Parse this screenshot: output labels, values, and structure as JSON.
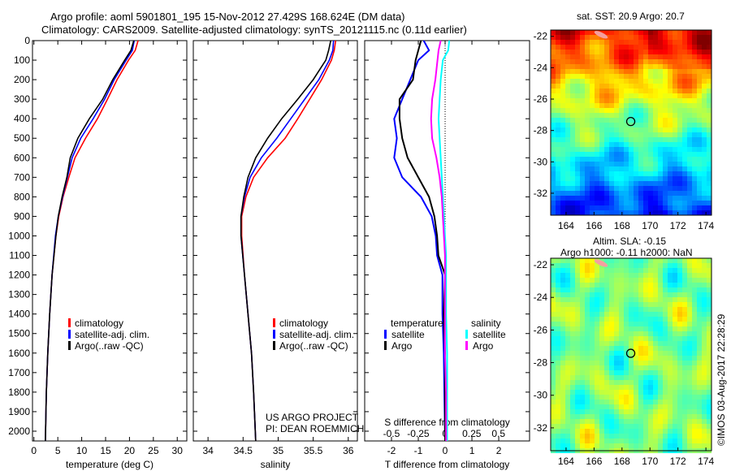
{
  "title": {
    "line1": "Argo profile: aoml 5901801_195 15-Nov-2012 27.429S 168.624E (DM data)",
    "line2": "Climatology: CARS2009. Satellite-adjusted climatology: synTS_20121115.nc (0.11d earlier)"
  },
  "credit": "US ARGO PROJECT",
  "pi": "PI: DEAN ROEMMICH",
  "footer": "©IMOS 03-Aug-2017 22:28:29",
  "colors": {
    "climatology": "#ff0000",
    "satellite": "#0000ff",
    "argo": "#000000",
    "sal_sat": "#00ffff",
    "sal_argo": "#ff00ff"
  },
  "chart_data": [
    {
      "type": "line",
      "xlabel": "temperature (deg C)",
      "ylabel": "depth",
      "xlim": [
        -0.3,
        32
      ],
      "ylim": [
        2050,
        0
      ],
      "xticks": [
        0,
        5,
        10,
        15,
        20,
        25,
        30
      ],
      "yticks": [
        0,
        100,
        200,
        300,
        400,
        500,
        600,
        700,
        800,
        900,
        1000,
        1100,
        1200,
        1300,
        1400,
        1500,
        1600,
        1700,
        1800,
        1900,
        2000
      ],
      "legend": [
        "climatology",
        "satellite-adj. clim.",
        "Argo(..raw -QC)"
      ],
      "depth": [
        0,
        50,
        100,
        200,
        300,
        400,
        500,
        600,
        700,
        800,
        900,
        1000,
        1200,
        1400,
        1600,
        1800,
        2050
      ],
      "series": [
        {
          "name": "climatology",
          "color": "#ff0000",
          "values": [
            21.8,
            21.2,
            19.8,
            17.4,
            15.4,
            13.3,
            10.8,
            8.6,
            7.3,
            6.1,
            5.2,
            4.6,
            3.8,
            3.3,
            2.9,
            2.6,
            2.4
          ]
        },
        {
          "name": "satellite-adj. clim.",
          "color": "#0000ff",
          "values": [
            21.0,
            20.6,
            19.3,
            16.8,
            14.8,
            12.4,
            9.8,
            8.0,
            7.0,
            6.0,
            5.1,
            4.5,
            3.8,
            3.3,
            2.9,
            2.6,
            2.4
          ]
        },
        {
          "name": "Argo(..raw -QC)",
          "color": "#000000",
          "values": [
            20.9,
            20.3,
            19.0,
            16.5,
            14.4,
            11.6,
            9.2,
            7.6,
            6.9,
            5.9,
            5.1,
            4.6,
            3.8,
            3.3,
            2.9,
            2.6,
            2.4
          ]
        }
      ]
    },
    {
      "type": "line",
      "xlabel": "salinity",
      "xlim": [
        33.79,
        36.13
      ],
      "ylim": [
        2050,
        0
      ],
      "xticks": [
        34,
        34.5,
        35,
        35.5,
        36
      ],
      "legend": [
        "climatology",
        "satellite-adj. clim.",
        "Argo(..raw -QC)"
      ],
      "depth": [
        0,
        50,
        100,
        200,
        300,
        400,
        500,
        600,
        700,
        800,
        900,
        1000,
        1200,
        1400,
        1600,
        1800,
        2050
      ],
      "series": [
        {
          "name": "climatology",
          "color": "#ff0000",
          "values": [
            35.82,
            35.8,
            35.76,
            35.62,
            35.45,
            35.28,
            35.1,
            34.85,
            34.65,
            34.54,
            34.48,
            34.48,
            34.52,
            34.57,
            34.62,
            34.65,
            34.68
          ]
        },
        {
          "name": "satellite-adj. clim.",
          "color": "#0000ff",
          "values": [
            35.79,
            35.78,
            35.73,
            35.58,
            35.38,
            35.18,
            34.98,
            34.76,
            34.6,
            34.52,
            34.47,
            34.47,
            34.52,
            34.57,
            34.62,
            34.65,
            34.68
          ]
        },
        {
          "name": "Argo(..raw -QC)",
          "color": "#000000",
          "values": [
            35.75,
            35.72,
            35.68,
            35.5,
            35.28,
            35.05,
            34.85,
            34.68,
            34.57,
            34.51,
            34.47,
            34.47,
            34.52,
            34.57,
            34.62,
            34.65,
            34.68
          ]
        }
      ]
    },
    {
      "type": "line",
      "xlabel": "T difference from climatology",
      "x2label": "S difference from climatology",
      "xlim": [
        -3,
        3.15
      ],
      "x2lim": [
        -0.75,
        0.79
      ],
      "ylim": [
        2050,
        0
      ],
      "xticks": [
        -2,
        -1,
        0,
        1,
        2
      ],
      "x2ticks": [
        "-0.5",
        "-0.25",
        "0",
        "0.25",
        "0.5"
      ],
      "legend_t": {
        "title": "temperature",
        "items": [
          "satellite",
          "Argo"
        ]
      },
      "legend_s": {
        "title": "salinity",
        "items": [
          "satellite",
          "Argo"
        ]
      },
      "depth": [
        0,
        50,
        100,
        200,
        300,
        400,
        500,
        600,
        700,
        800,
        900,
        1000,
        1100,
        1200,
        1400,
        1600,
        1800,
        2050
      ],
      "series": [
        {
          "name": "temperature satellite",
          "color": "#0000ff",
          "axis": "T",
          "values": [
            -0.8,
            -0.6,
            -1.0,
            -1.3,
            -1.6,
            -1.9,
            -1.8,
            -1.9,
            -1.6,
            -0.9,
            -0.5,
            -0.35,
            -0.3,
            -0.1,
            -0.1,
            -0.05,
            -0.03,
            0
          ]
        },
        {
          "name": "temperature Argo",
          "color": "#000000",
          "axis": "T",
          "values": [
            -0.9,
            -1.0,
            -1.1,
            -1.2,
            -1.7,
            -1.7,
            -1.6,
            -1.4,
            -1.0,
            -0.6,
            -0.4,
            -0.3,
            -0.25,
            0,
            -0.05,
            0,
            0,
            0
          ]
        },
        {
          "name": "salinity satellite",
          "color": "#00ffff",
          "axis": "S",
          "values": [
            0.04,
            0.03,
            -0.02,
            -0.04,
            -0.05,
            -0.06,
            -0.05,
            -0.04,
            -0.03,
            -0.02,
            -0.01,
            0,
            0.01,
            0.01,
            0.01,
            0.02,
            0.02,
            0.02
          ]
        },
        {
          "name": "salinity Argo",
          "color": "#ff00ff",
          "axis": "S",
          "values": [
            -0.04,
            -0.06,
            -0.07,
            -0.09,
            -0.12,
            -0.13,
            -0.12,
            -0.08,
            -0.05,
            -0.03,
            -0.02,
            -0.01,
            0,
            0,
            0,
            0,
            0.01,
            0.01
          ]
        }
      ]
    },
    {
      "type": "heatmap",
      "title": "sat. SST: 20.9 Argo: 20.7",
      "lon_ticks": [
        164,
        166,
        168,
        170,
        172,
        174
      ],
      "lat_ticks": [
        -22,
        -24,
        -26,
        -28,
        -30,
        -32
      ],
      "lonlim": [
        162.9,
        174.4
      ],
      "latlim": [
        -33.4,
        -21.6
      ],
      "marker": [
        168.624,
        -27.429
      ]
    },
    {
      "type": "heatmap",
      "title": "Altim. SLA: -0.15",
      "subtitle": "Argo h1000: -0.11 h2000: NaN",
      "lon_ticks": [
        164,
        166,
        168,
        170,
        172,
        174
      ],
      "lat_ticks": [
        -22,
        -24,
        -26,
        -28,
        -30,
        -32
      ],
      "lonlim": [
        162.9,
        174.4
      ],
      "latlim": [
        -33.4,
        -21.6
      ],
      "marker": [
        168.624,
        -27.429
      ]
    }
  ]
}
